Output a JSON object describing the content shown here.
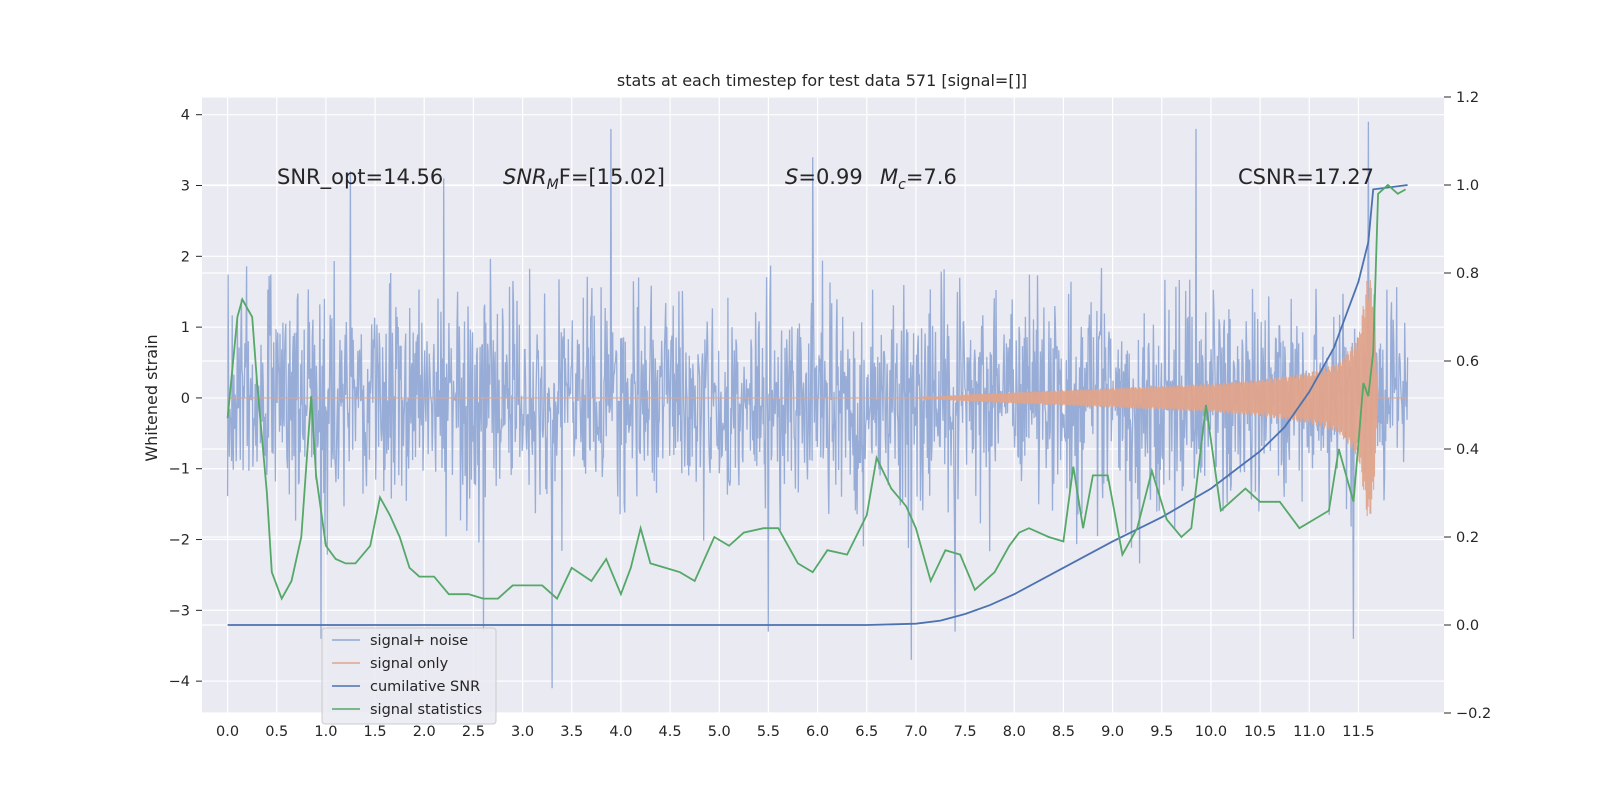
{
  "chart_data": {
    "type": "line",
    "title": "stats at each timestep for test data 571 [signal=[]]",
    "xlabel": "",
    "ylabel": "Whitened strain",
    "y2label": "",
    "xlim": [
      -0.26,
      12.37
    ],
    "ylim": [
      -4.45,
      4.25
    ],
    "y2lim": [
      -0.2,
      1.2
    ],
    "x_ticks": [
      0.0,
      0.5,
      1.0,
      1.5,
      2.0,
      2.5,
      3.0,
      3.5,
      4.0,
      4.5,
      5.0,
      5.5,
      6.0,
      6.5,
      7.0,
      7.5,
      8.0,
      8.5,
      9.0,
      9.5,
      10.0,
      10.5,
      11.0,
      11.5
    ],
    "x_tick_labels": [
      "0.0",
      "0.5",
      "1.0",
      "1.5",
      "2.0",
      "2.5",
      "3.0",
      "3.5",
      "4.0",
      "4.5",
      "5.0",
      "5.5",
      "6.0",
      "6.5",
      "7.0",
      "7.5",
      "8.0",
      "8.5",
      "9.0",
      "9.5",
      "10.0",
      "10.5",
      "11.0",
      "11.5"
    ],
    "y_ticks": [
      -4,
      -3,
      -2,
      -1,
      0,
      1,
      2,
      3,
      4
    ],
    "y_tick_labels": [
      "−4",
      "−3",
      "−2",
      "−1",
      "0",
      "1",
      "2",
      "3",
      "4"
    ],
    "y2_ticks": [
      -0.2,
      0.0,
      0.2,
      0.4,
      0.6,
      0.8,
      1.0,
      1.2
    ],
    "y2_tick_labels": [
      "−0.2",
      "0.0",
      "0.2",
      "0.4",
      "0.6",
      "0.8",
      "1.0",
      "1.2"
    ],
    "grid": true,
    "legend_position": "lower-left",
    "annotations": {
      "snr_opt": "SNR_opt=14.56",
      "snr_mf_base": "SNR",
      "snr_mf_sub": "M",
      "snr_mf_rest": "F=[15.02]",
      "s_italic": "S",
      "s_rest": "=0.99",
      "mc_italic": "M",
      "mc_sub": "c",
      "mc_rest": "=7.6",
      "csnr": "CSNR=17.27"
    },
    "series": [
      {
        "name": "signal+ noise",
        "color": "#92a9d4",
        "axis": "left",
        "duration": 12.0,
        "samples": 2048,
        "envelope_range": [
          -2.0,
          2.0
        ],
        "extreme_values": [
          {
            "x": 0.95,
            "y": -3.4
          },
          {
            "x": 1.25,
            "y": 3.2
          },
          {
            "x": 2.2,
            "y": 3.1
          },
          {
            "x": 2.6,
            "y": -3.3
          },
          {
            "x": 3.3,
            "y": -4.1
          },
          {
            "x": 3.9,
            "y": 3.8
          },
          {
            "x": 5.5,
            "y": -3.3
          },
          {
            "x": 5.95,
            "y": 3.4
          },
          {
            "x": 6.95,
            "y": -3.7
          },
          {
            "x": 7.4,
            "y": -3.3
          },
          {
            "x": 9.85,
            "y": 3.8
          },
          {
            "x": 11.45,
            "y": -3.4
          },
          {
            "x": 11.6,
            "y": 3.9
          }
        ]
      },
      {
        "name": "signal only",
        "color": "#e0a48b",
        "axis": "left",
        "amplitude_x": [
          0.0,
          7.0,
          7.5,
          8.0,
          8.5,
          9.0,
          9.5,
          10.0,
          10.5,
          11.0,
          11.3,
          11.5,
          11.6,
          11.65,
          11.7,
          12.0
        ],
        "amplitude_y": [
          0.0,
          0.0,
          0.05,
          0.08,
          0.11,
          0.14,
          0.17,
          0.2,
          0.26,
          0.36,
          0.5,
          0.85,
          1.8,
          1.5,
          0.0,
          0.0
        ]
      },
      {
        "name": "cumilative SNR",
        "color": "#4c72b0",
        "axis": "right",
        "x": [
          0.0,
          6.5,
          7.0,
          7.25,
          7.5,
          7.75,
          8.0,
          8.5,
          9.0,
          9.5,
          10.0,
          10.5,
          10.75,
          11.0,
          11.25,
          11.5,
          11.6,
          11.65,
          12.0
        ],
        "y": [
          0.0,
          0.0,
          0.003,
          0.01,
          0.025,
          0.045,
          0.07,
          0.13,
          0.19,
          0.245,
          0.31,
          0.395,
          0.45,
          0.53,
          0.63,
          0.78,
          0.87,
          0.99,
          1.0
        ]
      },
      {
        "name": "signal statistics",
        "color": "#55a868",
        "axis": "right",
        "x": [
          0.0,
          0.1,
          0.15,
          0.25,
          0.3,
          0.4,
          0.45,
          0.55,
          0.65,
          0.75,
          0.85,
          0.9,
          1.0,
          1.1,
          1.2,
          1.3,
          1.45,
          1.55,
          1.65,
          1.75,
          1.85,
          1.95,
          2.1,
          2.25,
          2.45,
          2.6,
          2.75,
          2.9,
          3.05,
          3.2,
          3.35,
          3.5,
          3.7,
          3.85,
          4.0,
          4.1,
          4.2,
          4.3,
          4.45,
          4.6,
          4.75,
          4.95,
          5.1,
          5.25,
          5.45,
          5.6,
          5.8,
          5.95,
          6.1,
          6.3,
          6.5,
          6.6,
          6.75,
          6.9,
          7.0,
          7.15,
          7.3,
          7.45,
          7.6,
          7.8,
          7.95,
          8.05,
          8.15,
          8.35,
          8.5,
          8.6,
          8.7,
          8.8,
          8.95,
          9.1,
          9.25,
          9.4,
          9.55,
          9.7,
          9.8,
          9.95,
          10.1,
          10.2,
          10.35,
          10.5,
          10.7,
          10.9,
          11.05,
          11.2,
          11.3,
          11.45,
          11.55,
          11.6,
          11.65,
          11.7,
          11.8,
          11.9,
          11.98
        ],
        "y": [
          0.47,
          0.7,
          0.74,
          0.7,
          0.55,
          0.3,
          0.12,
          0.06,
          0.1,
          0.2,
          0.52,
          0.34,
          0.18,
          0.15,
          0.14,
          0.14,
          0.18,
          0.29,
          0.25,
          0.2,
          0.13,
          0.11,
          0.11,
          0.07,
          0.07,
          0.06,
          0.06,
          0.09,
          0.09,
          0.09,
          0.06,
          0.13,
          0.1,
          0.15,
          0.07,
          0.13,
          0.22,
          0.14,
          0.13,
          0.12,
          0.1,
          0.2,
          0.18,
          0.21,
          0.22,
          0.22,
          0.14,
          0.12,
          0.17,
          0.16,
          0.25,
          0.38,
          0.31,
          0.27,
          0.22,
          0.1,
          0.17,
          0.16,
          0.08,
          0.12,
          0.18,
          0.21,
          0.22,
          0.2,
          0.19,
          0.36,
          0.22,
          0.34,
          0.34,
          0.16,
          0.22,
          0.35,
          0.24,
          0.2,
          0.22,
          0.5,
          0.26,
          0.28,
          0.31,
          0.28,
          0.28,
          0.22,
          0.24,
          0.26,
          0.4,
          0.28,
          0.55,
          0.52,
          0.62,
          0.98,
          1.0,
          0.98,
          0.99
        ]
      }
    ]
  }
}
